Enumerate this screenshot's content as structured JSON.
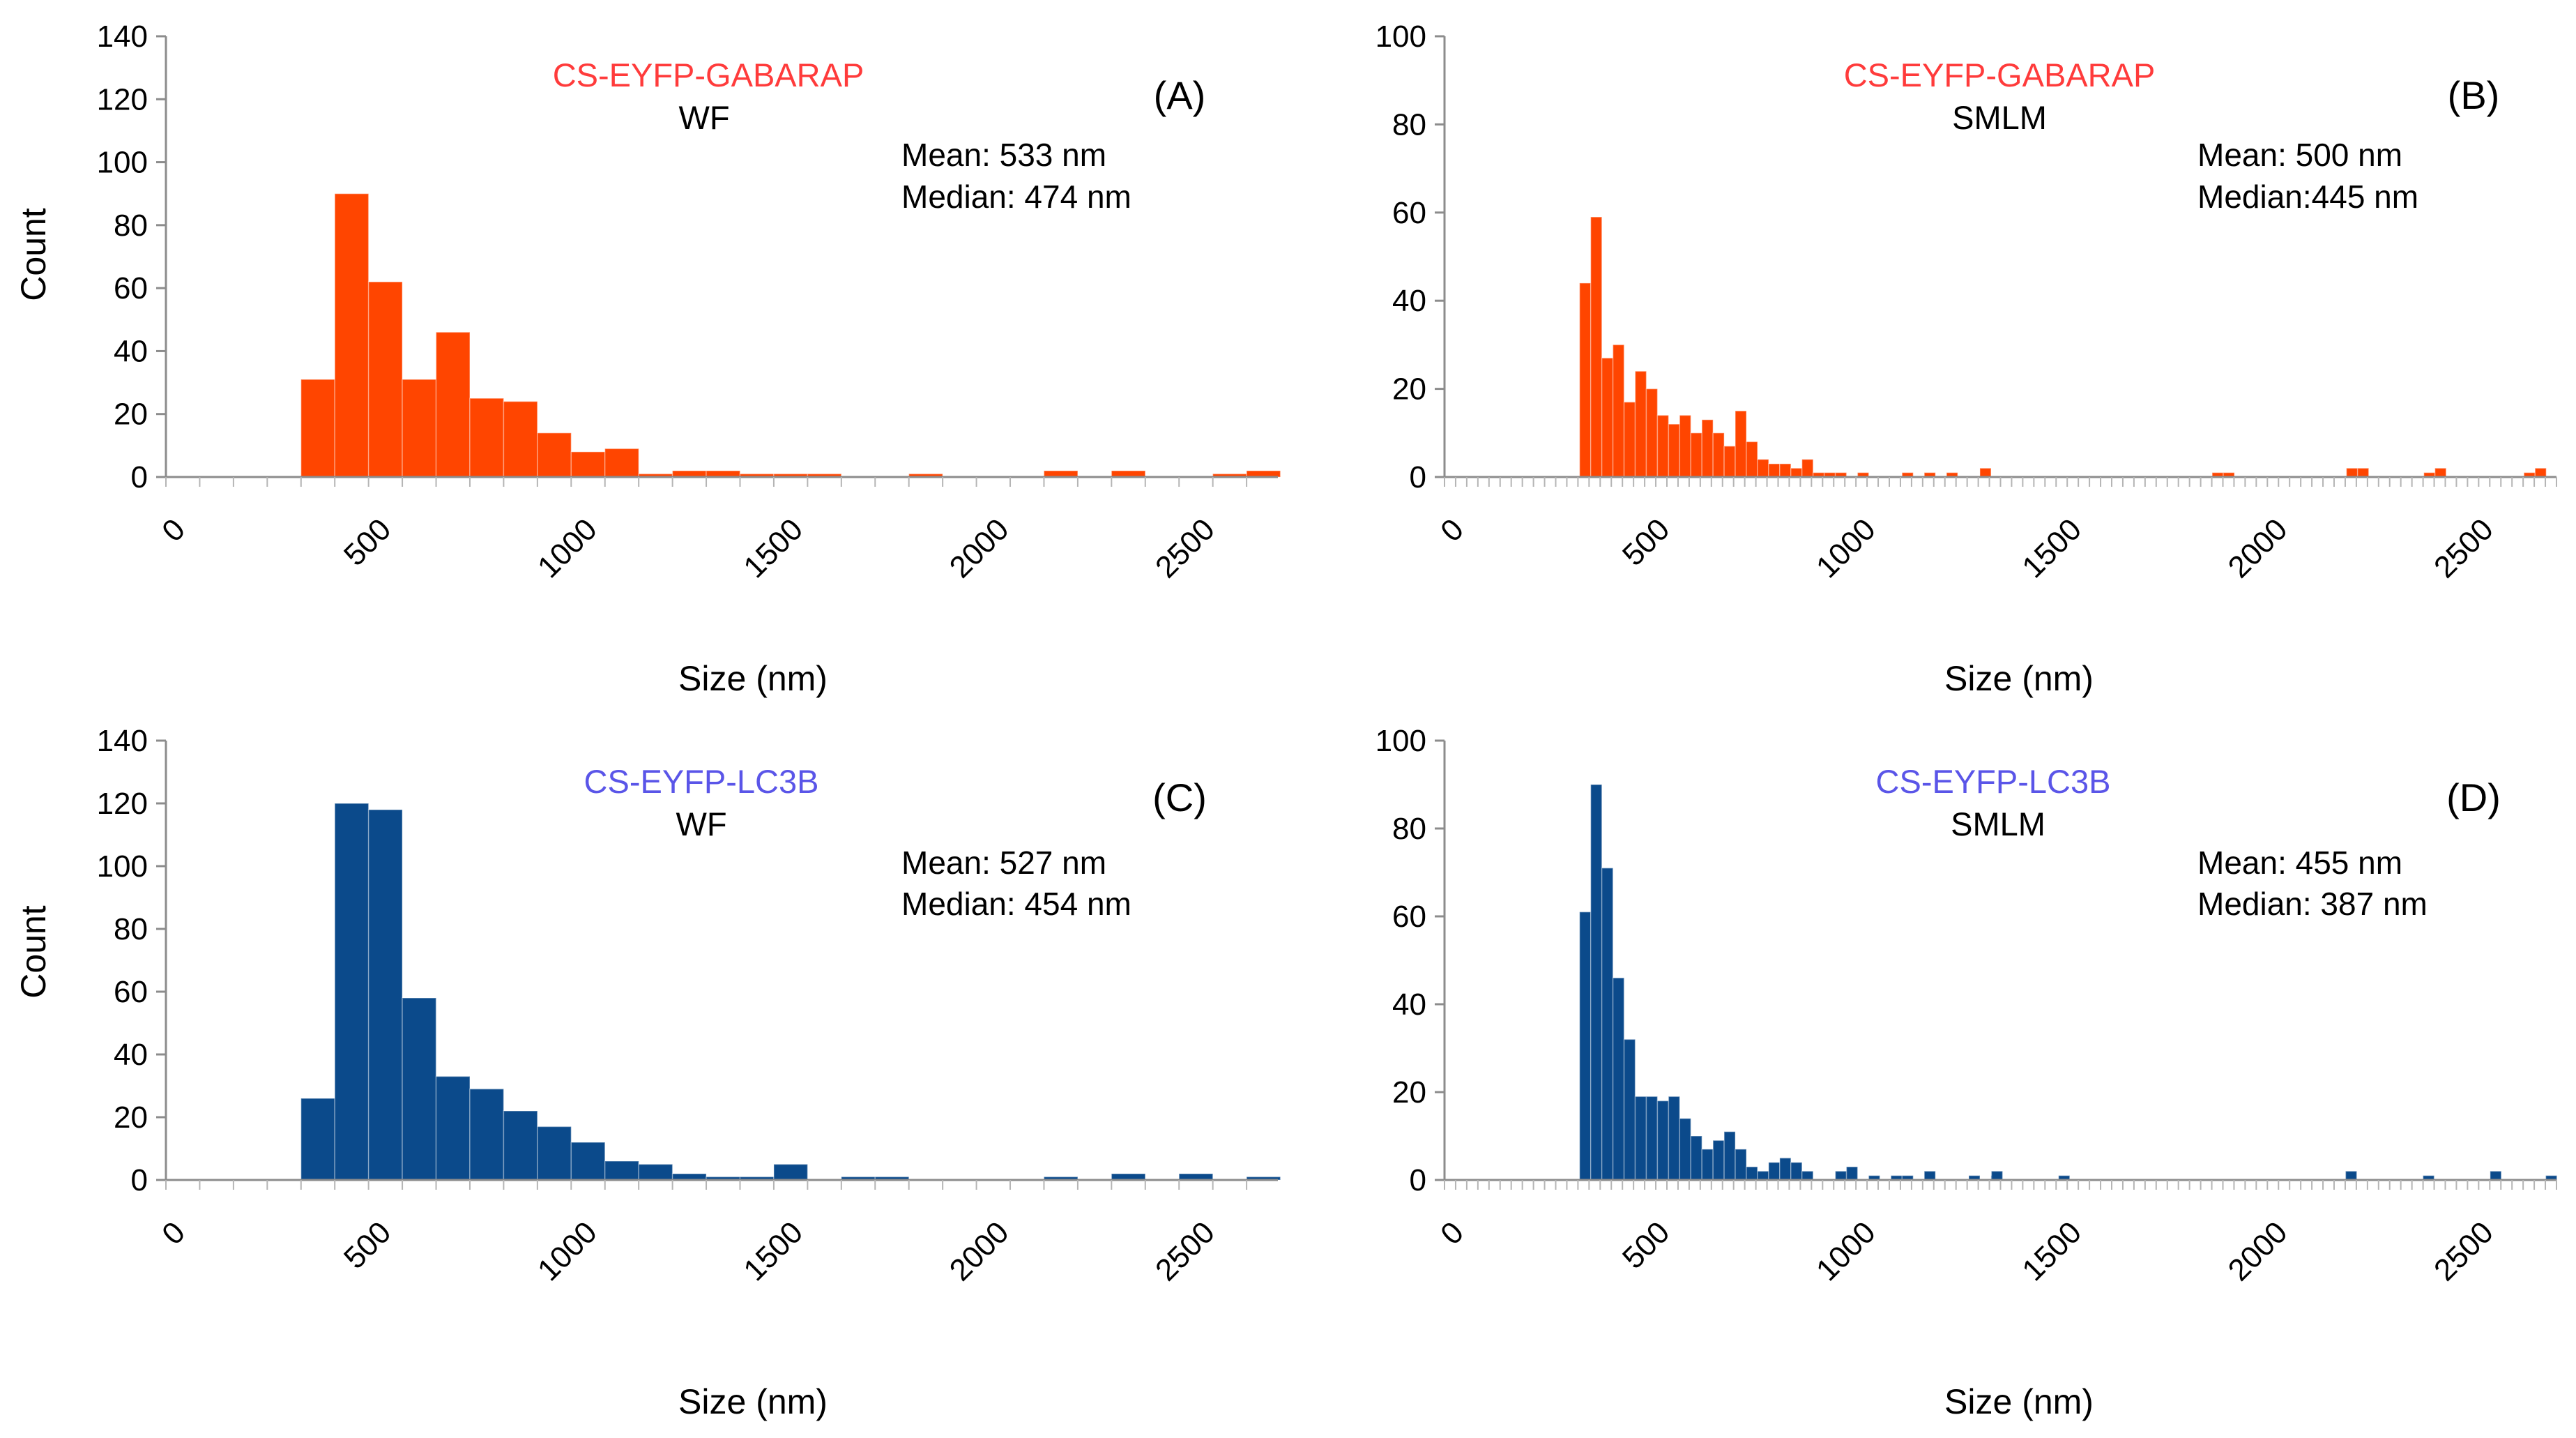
{
  "figure": {
    "panels_order": [
      "A",
      "B",
      "C",
      "D"
    ]
  },
  "chart_data": [
    {
      "id": "A",
      "type": "bar",
      "title": "CS-EYFP-GABARAP",
      "subtitle": "WF",
      "panel_label": "(A)",
      "annotations": [
        "Mean: 533 nm",
        "Median: 474 nm"
      ],
      "xlabel": "Size (nm)",
      "ylabel": "Count",
      "xlim": [
        0,
        2700
      ],
      "ylim": [
        0,
        140
      ],
      "xticks": [
        0,
        500,
        1000,
        1500,
        2000,
        2500
      ],
      "xtick_labels": [
        "0",
        "500",
        "1000",
        "1500",
        "2000",
        "2500"
      ],
      "yticks": [
        0,
        20,
        40,
        60,
        80,
        100,
        120,
        140
      ],
      "ytick_labels": [
        "0",
        "20",
        "40",
        "60",
        "80",
        "100",
        "120",
        "140"
      ],
      "bin_width": 82,
      "bar_color": "#ff4500",
      "title_color": "#ff3b3b",
      "series": [
        {
          "name": "CS-EYFP-GABARAP WF",
          "bins": [
            328,
            410,
            492,
            574,
            656,
            738,
            820,
            902,
            984,
            1066,
            1148,
            1230,
            1312,
            1394,
            1476,
            1558,
            1640,
            1722,
            1804,
            1886,
            1968,
            2050,
            2132,
            2214,
            2296,
            2378,
            2460,
            2542,
            2624
          ],
          "values": [
            31,
            90,
            62,
            31,
            46,
            25,
            24,
            14,
            8,
            9,
            1,
            2,
            2,
            1,
            1,
            1,
            0,
            0,
            1,
            0,
            0,
            0,
            2,
            0,
            2,
            0,
            0,
            1,
            2
          ]
        }
      ]
    },
    {
      "id": "B",
      "type": "bar",
      "title": "CS-EYFP-GABARAP",
      "subtitle": "SMLM",
      "panel_label": "(B)",
      "annotations": [
        "Mean: 500 nm",
        "Median:445 nm"
      ],
      "xlabel": "Size (nm)",
      "ylabel": "",
      "xlim": [
        0,
        2700
      ],
      "ylim": [
        0,
        100
      ],
      "xticks": [
        0,
        500,
        1000,
        1500,
        2000,
        2500
      ],
      "xtick_labels": [
        "0",
        "500",
        "1000",
        "1500",
        "2000",
        "2500"
      ],
      "yticks": [
        0,
        20,
        40,
        60,
        80,
        100
      ],
      "ytick_labels": [
        "0",
        "20",
        "40",
        "60",
        "80",
        "100"
      ],
      "bin_width": 27,
      "bar_color": "#ff4500",
      "title_color": "#ff3b3b",
      "series": [
        {
          "name": "CS-EYFP-GABARAP SMLM",
          "bins": [
            328,
            355,
            382,
            409,
            436,
            463,
            490,
            517,
            544,
            571,
            598,
            625,
            652,
            679,
            706,
            733,
            760,
            787,
            814,
            841,
            868,
            895,
            922,
            949,
            976,
            1003,
            1030,
            1057,
            1084,
            1111,
            1138,
            1165,
            1192,
            1219,
            1246,
            1273,
            1300,
            1327,
            1354,
            1381,
            1408,
            1435,
            1462,
            1489,
            1516,
            1543,
            1570,
            1597,
            1624,
            1651,
            1678,
            1705,
            1732,
            1759,
            1786,
            1813,
            1840,
            1867,
            1894,
            1921,
            1948,
            1975,
            2002,
            2029,
            2056,
            2083,
            2110,
            2137,
            2164,
            2191,
            2218,
            2245,
            2272,
            2299,
            2326,
            2353,
            2380,
            2407,
            2434,
            2461,
            2488,
            2515,
            2542,
            2569,
            2596,
            2623,
            2650
          ],
          "values": [
            44,
            59,
            27,
            30,
            17,
            24,
            20,
            14,
            12,
            14,
            10,
            13,
            10,
            7,
            15,
            8,
            4,
            3,
            3,
            2,
            4,
            1,
            1,
            1,
            0,
            1,
            0,
            0,
            0,
            1,
            0,
            1,
            0,
            1,
            0,
            0,
            2,
            0,
            0,
            0,
            0,
            0,
            0,
            0,
            0,
            0,
            0,
            0,
            0,
            0,
            0,
            0,
            0,
            0,
            0,
            0,
            0,
            0,
            0,
            0,
            0,
            0,
            0,
            0,
            0,
            0,
            0,
            0,
            0,
            0,
            0,
            0,
            0,
            0,
            0,
            0,
            0,
            0,
            0,
            0,
            0,
            0,
            0,
            0,
            0,
            0,
            0
          ]
        }
      ],
      "sparse_values": [
        [
          1864,
          1
        ],
        [
          1891,
          1
        ],
        [
          2190,
          2
        ],
        [
          2217,
          2
        ],
        [
          2378,
          1
        ],
        [
          2405,
          2
        ],
        [
          2621,
          1
        ],
        [
          2648,
          2
        ]
      ]
    },
    {
      "id": "C",
      "type": "bar",
      "title": "CS-EYFP-LC3B",
      "subtitle": "WF",
      "panel_label": "(C)",
      "annotations": [
        "Mean: 527 nm",
        "Median: 454 nm"
      ],
      "xlabel": "Size (nm)",
      "ylabel": "Count",
      "xlim": [
        0,
        2700
      ],
      "ylim": [
        0,
        140
      ],
      "xticks": [
        0,
        500,
        1000,
        1500,
        2000,
        2500
      ],
      "xtick_labels": [
        "0",
        "500",
        "1000",
        "1500",
        "2000",
        "2500"
      ],
      "yticks": [
        0,
        20,
        40,
        60,
        80,
        100,
        120,
        140
      ],
      "ytick_labels": [
        "0",
        "20",
        "40",
        "60",
        "80",
        "100",
        "120",
        "140"
      ],
      "bin_width": 82,
      "bar_color": "#0b4a8b",
      "title_color": "#5a55e8",
      "series": [
        {
          "name": "CS-EYFP-LC3B WF",
          "bins": [
            328,
            410,
            492,
            574,
            656,
            738,
            820,
            902,
            984,
            1066,
            1148,
            1230,
            1312,
            1394,
            1476,
            1558,
            1640,
            1722,
            1804,
            1886,
            1968,
            2050,
            2132,
            2214,
            2296,
            2378,
            2460,
            2542,
            2624
          ],
          "values": [
            26,
            120,
            118,
            58,
            33,
            29,
            22,
            17,
            12,
            6,
            5,
            2,
            1,
            1,
            5,
            0,
            1,
            1,
            0,
            0,
            0,
            0,
            1,
            0,
            2,
            0,
            2,
            0,
            1
          ]
        }
      ]
    },
    {
      "id": "D",
      "type": "bar",
      "title": "CS-EYFP-LC3B",
      "subtitle": "SMLM",
      "panel_label": "(D)",
      "annotations": [
        "Mean: 455 nm",
        "Median: 387 nm"
      ],
      "xlabel": "Size (nm)",
      "ylabel": "",
      "xlim": [
        0,
        2700
      ],
      "ylim": [
        0,
        100
      ],
      "xticks": [
        0,
        500,
        1000,
        1500,
        2000,
        2500
      ],
      "xtick_labels": [
        "0",
        "500",
        "1000",
        "1500",
        "2000",
        "2500"
      ],
      "yticks": [
        0,
        20,
        40,
        60,
        80,
        100
      ],
      "ytick_labels": [
        "0",
        "20",
        "40",
        "60",
        "80",
        "100"
      ],
      "bin_width": 27,
      "bar_color": "#0b4a8b",
      "title_color": "#5a55e8",
      "series": [
        {
          "name": "CS-EYFP-LC3B SMLM",
          "bins": [
            328,
            355,
            382,
            409,
            436,
            463,
            490,
            517,
            544,
            571,
            598,
            625,
            652,
            679,
            706,
            733,
            760,
            787,
            814,
            841,
            868,
            895,
            922,
            949,
            976,
            1003,
            1030,
            1057,
            1084,
            1111,
            1138,
            1165,
            1192,
            1219,
            1246,
            1273,
            1300,
            1327,
            1354,
            1381,
            1408,
            1435,
            1462,
            1489
          ],
          "values": [
            61,
            90,
            71,
            46,
            32,
            19,
            19,
            18,
            19,
            14,
            10,
            7,
            9,
            11,
            7,
            3,
            2,
            4,
            5,
            4,
            2,
            0,
            0,
            2,
            3,
            0,
            1,
            0,
            1,
            1,
            0,
            2,
            0,
            0,
            0,
            1,
            0,
            1,
            0,
            0,
            0,
            0,
            0,
            0
          ]
        }
      ],
      "sparse_values": [
        [
          1328,
          2
        ],
        [
          1491,
          1
        ],
        [
          2188,
          2
        ],
        [
          2376,
          1
        ],
        [
          2539,
          2
        ],
        [
          2674,
          1
        ]
      ]
    }
  ]
}
